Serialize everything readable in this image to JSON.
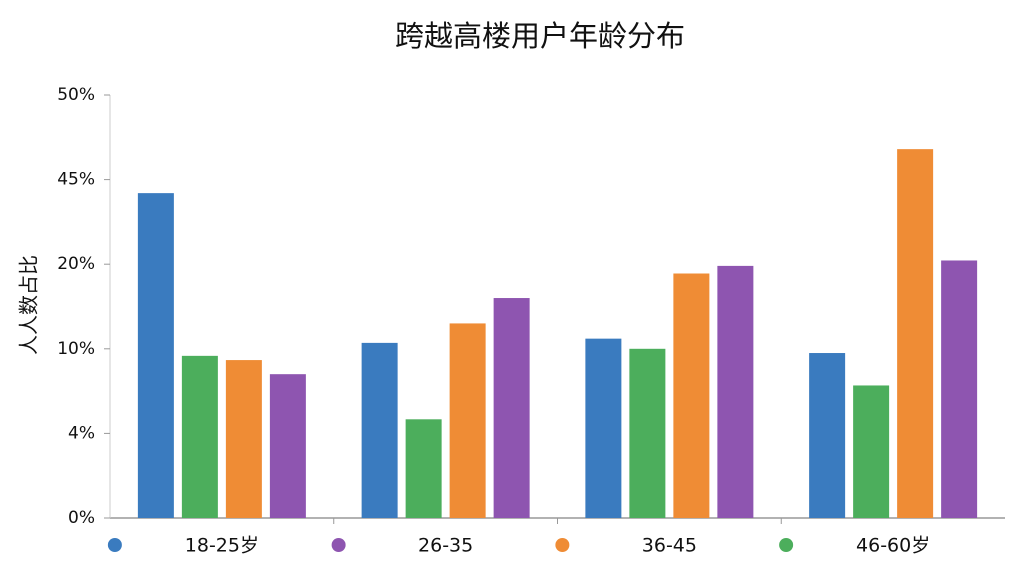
{
  "chart_data": {
    "type": "bar",
    "title": "跨越高楼用户年龄分布",
    "y_label": "人人数占比",
    "categories": [
      null,
      null,
      null,
      null
    ],
    "series": [
      {
        "name": "18-25岁",
        "color": "#3a7bbf",
        "values": [
          41,
          10.7,
          11.2,
          9.7
        ]
      },
      {
        "name": "26-35",
        "color": "#8e55b0",
        "values": [
          8.2,
          16,
          19.8,
          21.1
        ]
      },
      {
        "name": "36-45",
        "color": "#ef8c35",
        "values": [
          9.2,
          13,
          18.9,
          46.8
        ]
      },
      {
        "name": "46-60岁",
        "color": "#4cae5c",
        "values": [
          9.5,
          5,
          10,
          7.4
        ]
      }
    ],
    "ylim": [
      0,
      50
    ],
    "yticks": [
      {
        "value": 0,
        "label": "0%"
      },
      {
        "value": 4,
        "label": "4%"
      },
      {
        "value": 10,
        "label": "10%"
      },
      {
        "value": 20,
        "label": "20%"
      },
      {
        "value": 45,
        "label": "45%"
      },
      {
        "value": 50,
        "label": "50%"
      }
    ],
    "grid": false
  }
}
